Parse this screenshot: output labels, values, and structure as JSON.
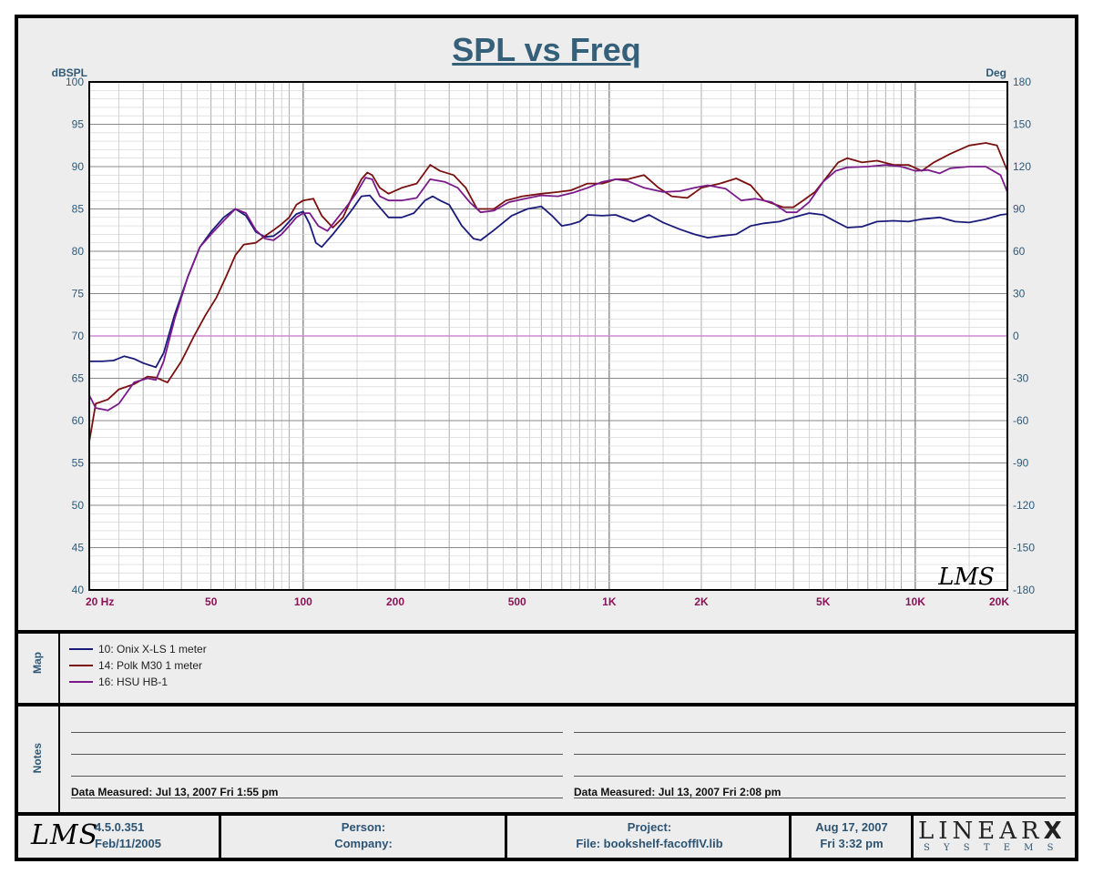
{
  "chart_data": {
    "type": "line",
    "title": "SPL vs Freq",
    "ylabel_left": "dBSPL",
    "ylabel_right": "Deg",
    "x_scale": "log",
    "xlim": [
      20,
      20000
    ],
    "ylim": [
      40,
      100
    ],
    "ylim_right": [
      -180,
      180
    ],
    "x_ticks": [
      {
        "value": 20,
        "label": "20  Hz"
      },
      {
        "value": 50,
        "label": "50"
      },
      {
        "value": 100,
        "label": "100"
      },
      {
        "value": 200,
        "label": "200"
      },
      {
        "value": 500,
        "label": "500"
      },
      {
        "value": 1000,
        "label": "1K"
      },
      {
        "value": 2000,
        "label": "2K"
      },
      {
        "value": 5000,
        "label": "5K"
      },
      {
        "value": 10000,
        "label": "10K"
      },
      {
        "value": 20000,
        "label": "20K"
      }
    ],
    "y_ticks": [
      "100",
      "95",
      "90",
      "85",
      "80",
      "75",
      "70",
      "65",
      "60",
      "55",
      "50",
      "45",
      "40"
    ],
    "y_ticks_right": [
      "180",
      "150",
      "120",
      "90",
      "60",
      "30",
      "0",
      "-30",
      "-60",
      "-90",
      "-120",
      "-150",
      "-180"
    ],
    "reference_line": {
      "value": 70,
      "color": "#d08ad0"
    },
    "watermark": "LMS",
    "series": [
      {
        "name": "10: Onix X-LS 1 meter",
        "color": "#1b1b7a",
        "points": [
          [
            20,
            67
          ],
          [
            22,
            67
          ],
          [
            24,
            67.1
          ],
          [
            26,
            67.6
          ],
          [
            28,
            67.3
          ],
          [
            30,
            66.8
          ],
          [
            33,
            66.3
          ],
          [
            35,
            68
          ],
          [
            38,
            72.5
          ],
          [
            42,
            77
          ],
          [
            46,
            80.5
          ],
          [
            50,
            82.3
          ],
          [
            55,
            84
          ],
          [
            60,
            85
          ],
          [
            65,
            84.2
          ],
          [
            70,
            82.3
          ],
          [
            75,
            81.7
          ],
          [
            80,
            81.8
          ],
          [
            85,
            82.5
          ],
          [
            90,
            83.5
          ],
          [
            95,
            84.4
          ],
          [
            100,
            84.7
          ],
          [
            105,
            83.2
          ],
          [
            110,
            81
          ],
          [
            115,
            80.5
          ],
          [
            125,
            82
          ],
          [
            135,
            83.5
          ],
          [
            145,
            85
          ],
          [
            155,
            86.5
          ],
          [
            165,
            86.6
          ],
          [
            175,
            85.5
          ],
          [
            190,
            84
          ],
          [
            210,
            84
          ],
          [
            230,
            84.5
          ],
          [
            250,
            86
          ],
          [
            265,
            86.5
          ],
          [
            280,
            86
          ],
          [
            300,
            85.5
          ],
          [
            330,
            83
          ],
          [
            360,
            81.5
          ],
          [
            380,
            81.3
          ],
          [
            420,
            82.5
          ],
          [
            480,
            84.2
          ],
          [
            540,
            85
          ],
          [
            600,
            85.3
          ],
          [
            650,
            84.2
          ],
          [
            700,
            83
          ],
          [
            750,
            83.2
          ],
          [
            800,
            83.5
          ],
          [
            850,
            84.3
          ],
          [
            950,
            84.2
          ],
          [
            1050,
            84.3
          ],
          [
            1200,
            83.5
          ],
          [
            1350,
            84.3
          ],
          [
            1500,
            83.4
          ],
          [
            1700,
            82.6
          ],
          [
            1900,
            82
          ],
          [
            2100,
            81.6
          ],
          [
            2300,
            81.8
          ],
          [
            2600,
            82
          ],
          [
            2900,
            83
          ],
          [
            3200,
            83.3
          ],
          [
            3600,
            83.5
          ],
          [
            4000,
            84
          ],
          [
            4500,
            84.5
          ],
          [
            5000,
            84.3
          ],
          [
            5500,
            83.5
          ],
          [
            6000,
            82.8
          ],
          [
            6700,
            82.9
          ],
          [
            7500,
            83.5
          ],
          [
            8500,
            83.6
          ],
          [
            9500,
            83.5
          ],
          [
            10500,
            83.8
          ],
          [
            12000,
            84
          ],
          [
            13500,
            83.5
          ],
          [
            15000,
            83.4
          ],
          [
            17000,
            83.8
          ],
          [
            19000,
            84.3
          ],
          [
            20000,
            84.4
          ]
        ]
      },
      {
        "name": "14: Polk M30 1 meter",
        "color": "#7a1010",
        "points": [
          [
            20,
            57.5
          ],
          [
            21,
            62
          ],
          [
            23,
            62.5
          ],
          [
            25,
            63.7
          ],
          [
            28,
            64.3
          ],
          [
            31,
            65.2
          ],
          [
            33,
            65.1
          ],
          [
            36,
            64.5
          ],
          [
            40,
            67
          ],
          [
            44,
            70
          ],
          [
            48,
            72.5
          ],
          [
            52,
            74.5
          ],
          [
            56,
            77
          ],
          [
            60,
            79.5
          ],
          [
            64,
            80.8
          ],
          [
            70,
            81
          ],
          [
            75,
            81.8
          ],
          [
            80,
            82.5
          ],
          [
            85,
            83.2
          ],
          [
            90,
            84
          ],
          [
            95,
            85.5
          ],
          [
            100,
            86
          ],
          [
            108,
            86.2
          ],
          [
            115,
            84.2
          ],
          [
            125,
            82.8
          ],
          [
            135,
            84
          ],
          [
            145,
            86.5
          ],
          [
            155,
            88.5
          ],
          [
            162,
            89.3
          ],
          [
            168,
            89
          ],
          [
            178,
            87.5
          ],
          [
            190,
            86.8
          ],
          [
            210,
            87.5
          ],
          [
            235,
            88
          ],
          [
            260,
            90.2
          ],
          [
            280,
            89.5
          ],
          [
            310,
            89
          ],
          [
            340,
            87.5
          ],
          [
            370,
            85
          ],
          [
            420,
            85
          ],
          [
            460,
            86
          ],
          [
            520,
            86.5
          ],
          [
            600,
            86.8
          ],
          [
            680,
            87
          ],
          [
            750,
            87.2
          ],
          [
            850,
            88
          ],
          [
            950,
            88
          ],
          [
            1050,
            88.5
          ],
          [
            1150,
            88.5
          ],
          [
            1300,
            89
          ],
          [
            1450,
            87.5
          ],
          [
            1600,
            86.5
          ],
          [
            1800,
            86.3
          ],
          [
            2000,
            87.5
          ],
          [
            2300,
            88
          ],
          [
            2600,
            88.6
          ],
          [
            2900,
            87.8
          ],
          [
            3200,
            86
          ],
          [
            3700,
            85.2
          ],
          [
            4000,
            85.2
          ],
          [
            4300,
            86
          ],
          [
            4700,
            87
          ],
          [
            5200,
            89
          ],
          [
            5600,
            90.5
          ],
          [
            6000,
            91
          ],
          [
            6700,
            90.5
          ],
          [
            7500,
            90.7
          ],
          [
            8500,
            90.2
          ],
          [
            9500,
            90.2
          ],
          [
            10500,
            89.5
          ],
          [
            11500,
            90.5
          ],
          [
            13000,
            91.5
          ],
          [
            15000,
            92.5
          ],
          [
            17000,
            92.8
          ],
          [
            18500,
            92.5
          ],
          [
            20000,
            89.5
          ]
        ]
      },
      {
        "name": "16: HSU HB-1",
        "color": "#7a1a8a",
        "points": [
          [
            20,
            63
          ],
          [
            21,
            61.5
          ],
          [
            23,
            61.2
          ],
          [
            25,
            62
          ],
          [
            28,
            64.5
          ],
          [
            31,
            65
          ],
          [
            33,
            64.8
          ],
          [
            35,
            67
          ],
          [
            38,
            72
          ],
          [
            42,
            77
          ],
          [
            46,
            80.5
          ],
          [
            50,
            82
          ],
          [
            55,
            83.6
          ],
          [
            60,
            85
          ],
          [
            65,
            84.5
          ],
          [
            70,
            82.5
          ],
          [
            75,
            81.5
          ],
          [
            80,
            81.3
          ],
          [
            85,
            82
          ],
          [
            90,
            83
          ],
          [
            95,
            84
          ],
          [
            100,
            84.5
          ],
          [
            105,
            84.5
          ],
          [
            112,
            83
          ],
          [
            120,
            82.4
          ],
          [
            130,
            84
          ],
          [
            140,
            85.5
          ],
          [
            150,
            87
          ],
          [
            160,
            88.7
          ],
          [
            168,
            88.5
          ],
          [
            178,
            86.5
          ],
          [
            190,
            86
          ],
          [
            210,
            86
          ],
          [
            235,
            86.3
          ],
          [
            260,
            88.5
          ],
          [
            290,
            88.2
          ],
          [
            320,
            87.5
          ],
          [
            350,
            85.8
          ],
          [
            380,
            84.6
          ],
          [
            420,
            84.8
          ],
          [
            470,
            85.8
          ],
          [
            530,
            86.2
          ],
          [
            600,
            86.6
          ],
          [
            680,
            86.5
          ],
          [
            760,
            86.9
          ],
          [
            850,
            87.5
          ],
          [
            950,
            88.2
          ],
          [
            1050,
            88.5
          ],
          [
            1150,
            88.3
          ],
          [
            1300,
            87.5
          ],
          [
            1500,
            87
          ],
          [
            1700,
            87.1
          ],
          [
            1900,
            87.5
          ],
          [
            2100,
            87.8
          ],
          [
            2400,
            87.4
          ],
          [
            2700,
            86
          ],
          [
            3000,
            86.2
          ],
          [
            3400,
            85.8
          ],
          [
            3800,
            84.6
          ],
          [
            4100,
            84.6
          ],
          [
            4500,
            85.8
          ],
          [
            5000,
            88.2
          ],
          [
            5500,
            89.5
          ],
          [
            6000,
            89.9
          ],
          [
            7000,
            90
          ],
          [
            8000,
            90.2
          ],
          [
            9000,
            90
          ],
          [
            10000,
            89.5
          ],
          [
            11000,
            89.6
          ],
          [
            12000,
            89.2
          ],
          [
            13000,
            89.8
          ],
          [
            15000,
            90
          ],
          [
            17000,
            90
          ],
          [
            19000,
            89
          ],
          [
            20000,
            87
          ]
        ]
      }
    ]
  },
  "map_panel": {
    "label": "Map",
    "legend": [
      {
        "text": "10: Onix X-LS 1 meter",
        "color": "#1b1b7a"
      },
      {
        "text": "14: Polk M30 1 meter",
        "color": "#7a1010"
      },
      {
        "text": "16: HSU HB-1",
        "color": "#7a1a8a"
      }
    ]
  },
  "notes_panel": {
    "label": "Notes",
    "left_note": "Data Measured: Jul 13, 2007  Fri  1:55 pm",
    "right_note": "Data Measured: Jul 13, 2007  Fri  2:08 pm"
  },
  "footer": {
    "logo": "LMS",
    "version": "4.5.0.351",
    "version_date": "Feb/11/2005",
    "person_label": "Person:",
    "company_label": "Company:",
    "project_label": "Project:",
    "file_label": "File: bookshelf-facoffIV.lib",
    "date": "Aug 17, 2007",
    "time": "Fri  3:32 pm",
    "brand_name": "LINEAR",
    "brand_x": "X",
    "brand_sub": "S Y S T E M S"
  }
}
